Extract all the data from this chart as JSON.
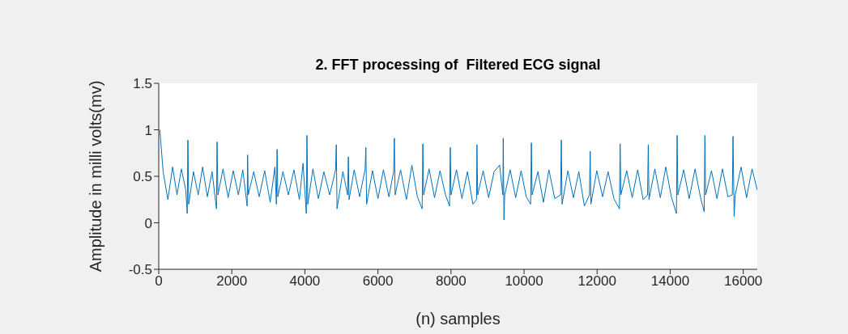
{
  "chart_data": {
    "type": "line",
    "title": "2. FFT processing of  Filtered ECG signal",
    "xlabel": "(n) samples",
    "ylabel": "Amplitude in milli volts(mv)",
    "xlim": [
      0,
      16384
    ],
    "xticks": [
      0,
      2000,
      4000,
      6000,
      8000,
      10000,
      12000,
      14000,
      16000
    ],
    "ylim": [
      -0.5,
      1.5
    ],
    "yticks": [
      -0.5,
      0,
      0.5,
      1,
      1.5
    ],
    "grid": false,
    "marker": "none",
    "line_style": "solid",
    "series": [
      {
        "color": "#0072bd",
        "x": [
          30,
          120,
          250,
          380,
          500,
          620,
          740,
          780,
          798,
          820,
          950,
          1080,
          1200,
          1330,
          1460,
          1580,
          1596,
          1620,
          1760,
          1900,
          2040,
          2180,
          2300,
          2420,
          2432,
          2450,
          2600,
          2750,
          2900,
          3050,
          3180,
          3220,
          3240,
          3260,
          3400,
          3550,
          3700,
          3850,
          3950,
          4040,
          4057,
          4080,
          4220,
          4370,
          4520,
          4680,
          4840,
          4860,
          4880,
          5040,
          5170,
          5190,
          5210,
          5350,
          5500,
          5650,
          5670,
          5690,
          5850,
          6000,
          6150,
          6300,
          6430,
          6450,
          6470,
          6620,
          6780,
          6930,
          7080,
          7210,
          7230,
          7250,
          7400,
          7550,
          7700,
          7850,
          7960,
          7980,
          8000,
          8150,
          8300,
          8450,
          8600,
          8700,
          8710,
          8730,
          8880,
          9030,
          9180,
          9330,
          9420,
          9430,
          9450,
          9470,
          9620,
          9770,
          9920,
          10060,
          10180,
          10200,
          10220,
          10380,
          10530,
          10680,
          10840,
          11000,
          11020,
          11040,
          11200,
          11350,
          11500,
          11650,
          11790,
          11810,
          11830,
          11990,
          12150,
          12300,
          12460,
          12610,
          12630,
          12650,
          12810,
          12960,
          13110,
          13260,
          13380,
          13400,
          13420,
          13580,
          13730,
          13880,
          14030,
          14170,
          14190,
          14210,
          14370,
          14520,
          14680,
          14830,
          14930,
          14950,
          14970,
          15130,
          15280,
          15430,
          15580,
          15700,
          15720,
          15750,
          15780,
          15940,
          16090,
          16240,
          16384
        ],
        "values": [
          1.0,
          0.55,
          0.25,
          0.6,
          0.3,
          0.58,
          0.35,
          0.1,
          0.89,
          0.2,
          0.55,
          0.3,
          0.6,
          0.28,
          0.55,
          0.15,
          0.87,
          0.3,
          0.58,
          0.27,
          0.56,
          0.3,
          0.57,
          0.18,
          0.73,
          0.3,
          0.55,
          0.28,
          0.56,
          0.22,
          0.6,
          0.2,
          0.79,
          0.28,
          0.55,
          0.3,
          0.57,
          0.25,
          0.64,
          0.1,
          0.94,
          0.2,
          0.58,
          0.26,
          0.55,
          0.3,
          0.57,
          0.84,
          0.15,
          0.55,
          0.3,
          0.71,
          0.25,
          0.57,
          0.28,
          0.58,
          0.81,
          0.2,
          0.56,
          0.26,
          0.57,
          0.28,
          0.55,
          0.91,
          0.3,
          0.57,
          0.25,
          0.62,
          0.28,
          0.15,
          0.85,
          0.3,
          0.58,
          0.27,
          0.56,
          0.3,
          0.18,
          0.81,
          0.3,
          0.57,
          0.26,
          0.55,
          0.2,
          0.25,
          0.84,
          0.3,
          0.56,
          0.27,
          0.55,
          0.62,
          0.3,
          0.91,
          0.03,
          0.3,
          0.57,
          0.27,
          0.56,
          0.28,
          0.2,
          0.86,
          0.3,
          0.55,
          0.22,
          0.57,
          0.26,
          0.3,
          0.89,
          0.2,
          0.56,
          0.27,
          0.55,
          0.18,
          0.3,
          0.77,
          0.2,
          0.56,
          0.28,
          0.55,
          0.26,
          0.15,
          0.85,
          0.3,
          0.56,
          0.27,
          0.57,
          0.25,
          0.3,
          0.84,
          0.25,
          0.58,
          0.27,
          0.6,
          0.28,
          0.1,
          0.94,
          0.3,
          0.57,
          0.26,
          0.58,
          0.27,
          0.12,
          0.94,
          0.3,
          0.56,
          0.26,
          0.58,
          0.28,
          0.3,
          0.93,
          0.07,
          0.3,
          0.6,
          0.27,
          0.58,
          0.35
        ]
      }
    ]
  }
}
